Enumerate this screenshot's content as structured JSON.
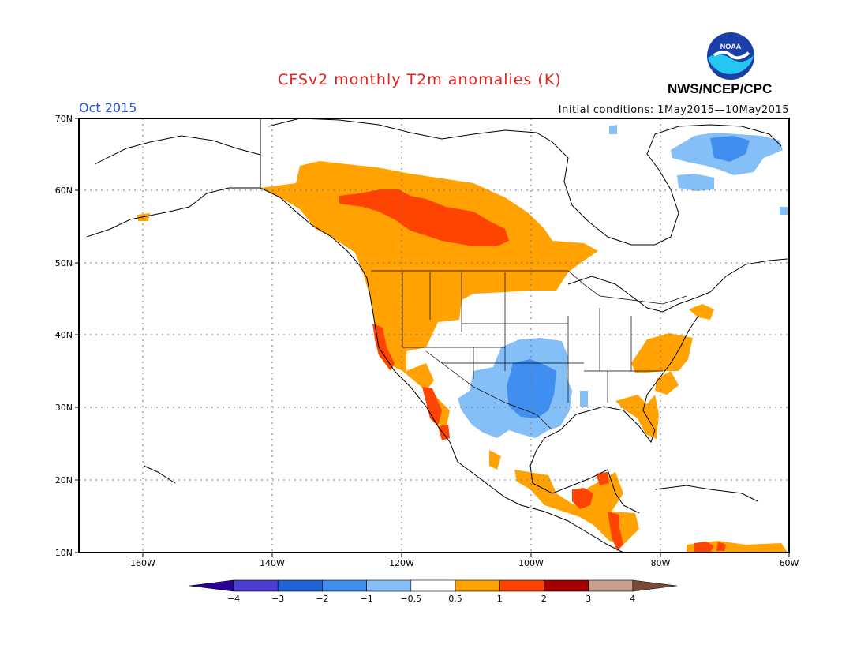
{
  "title": "CFSv2 monthly T2m anomalies (K)",
  "valid_month": "Oct 2015",
  "initial_conditions": "Initial conditions: 1May2015—10May2015",
  "agency": "NWS/NCEP/CPC",
  "logo_text": "NOAA",
  "map": {
    "lat_labels": [
      "70N",
      "60N",
      "50N",
      "40N",
      "30N",
      "20N",
      "10N"
    ],
    "lon_labels": [
      "160W",
      "140W",
      "120W",
      "100W",
      "80W",
      "60W"
    ]
  },
  "colorbar": {
    "ticks": [
      "−4",
      "−3",
      "−2",
      "−1",
      "−0.5",
      "0.5",
      "1",
      "2",
      "3",
      "4"
    ],
    "colors": [
      "#2a0096",
      "#4a3fd2",
      "#1f63d6",
      "#3f8ef0",
      "#84bff8",
      "#ffffff",
      "#ffa202",
      "#fe4400",
      "#a50000",
      "#c9a08c",
      "#7a4a38"
    ]
  },
  "colors": {
    "warm_05_1": "#ffa202",
    "warm_1_2": "#fe4400",
    "cool_05_1": "#84bff8",
    "cool_1_2": "#3f8ef0"
  }
}
